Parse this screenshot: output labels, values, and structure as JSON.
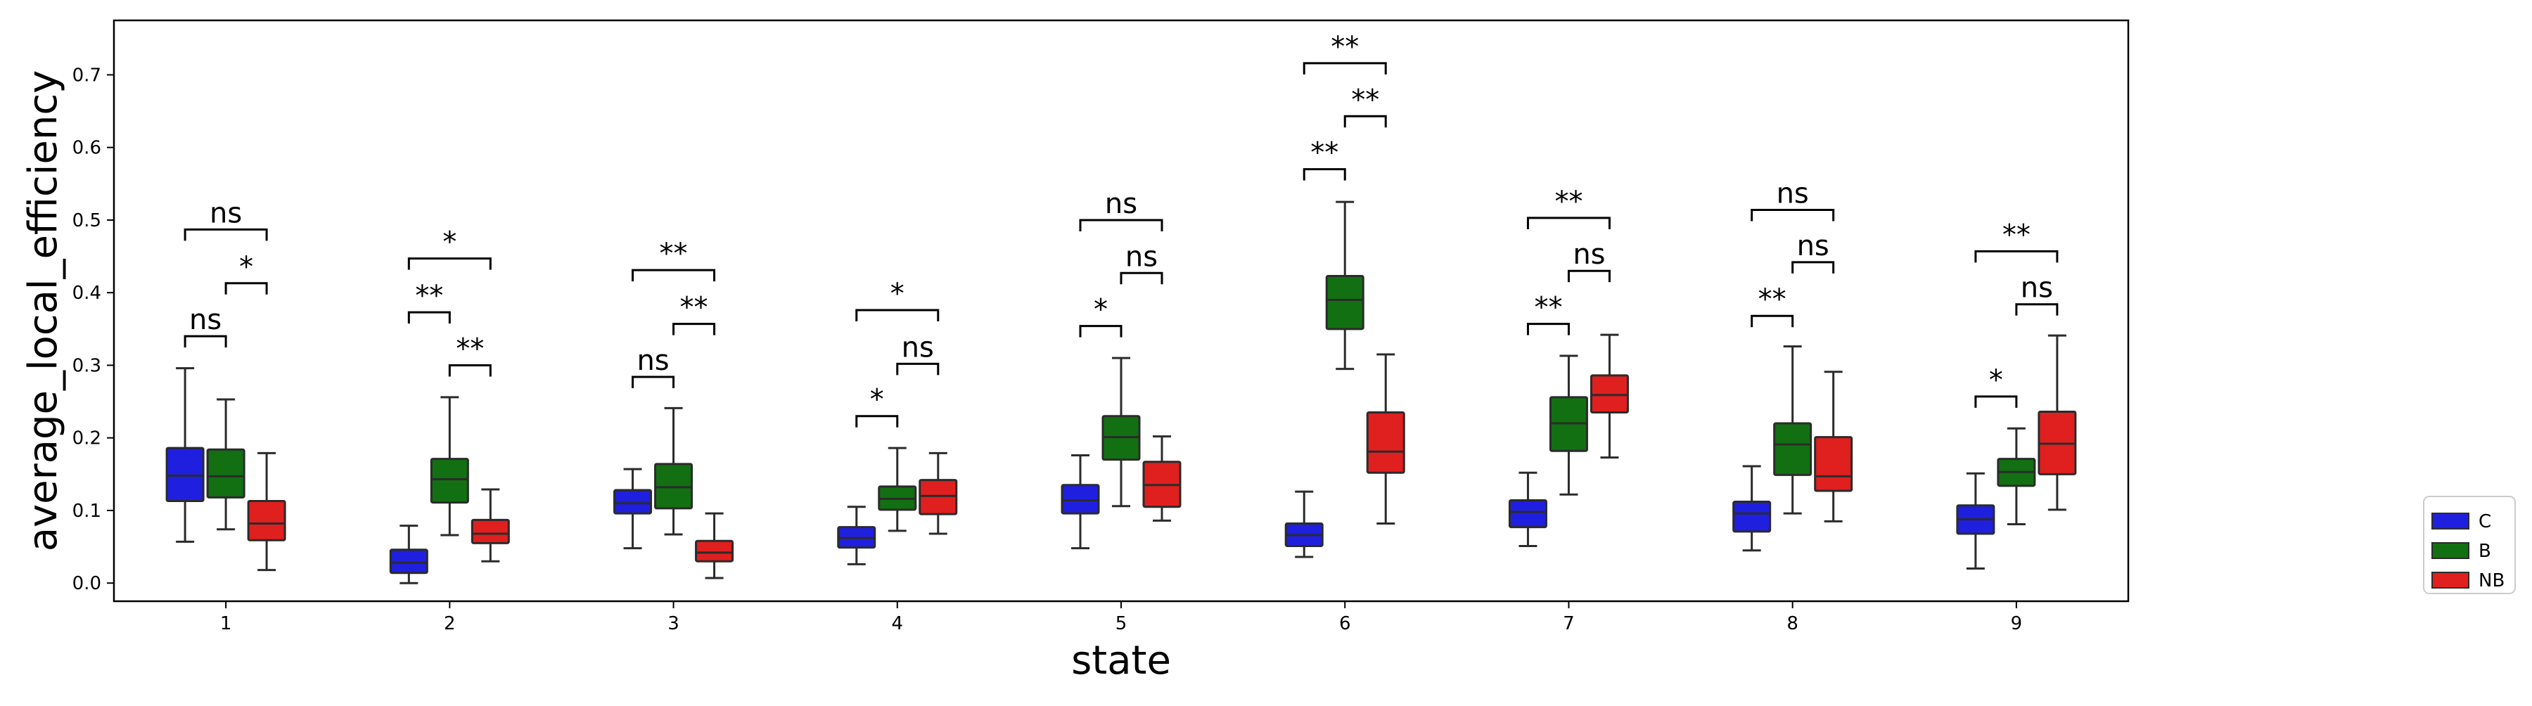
{
  "chart_data": {
    "type": "boxplot",
    "title": "",
    "xlabel": "state",
    "ylabel": "average_local_efficiency",
    "ylim": [
      -0.025,
      0.775
    ],
    "yticks": [
      0.0,
      0.1,
      0.2,
      0.3,
      0.4,
      0.5,
      0.6,
      0.7
    ],
    "ytick_labels": [
      "0.0",
      "0.1",
      "0.2",
      "0.3",
      "0.4",
      "0.5",
      "0.6",
      "0.7"
    ],
    "categories": [
      "1",
      "2",
      "3",
      "4",
      "5",
      "6",
      "7",
      "8",
      "9"
    ],
    "grid": false,
    "legend_position": "bottom-right outside",
    "series": [
      {
        "name": "C",
        "color": "#1f1fe0",
        "boxes": [
          {
            "min": 0.057,
            "q1": 0.113,
            "median": 0.148,
            "q3": 0.186,
            "max": 0.296
          },
          {
            "min": 0.0,
            "q1": 0.014,
            "median": 0.028,
            "q3": 0.046,
            "max": 0.079
          },
          {
            "min": 0.048,
            "q1": 0.096,
            "median": 0.11,
            "q3": 0.128,
            "max": 0.157
          },
          {
            "min": 0.026,
            "q1": 0.049,
            "median": 0.062,
            "q3": 0.077,
            "max": 0.105
          },
          {
            "min": 0.048,
            "q1": 0.096,
            "median": 0.114,
            "q3": 0.135,
            "max": 0.176
          },
          {
            "min": 0.036,
            "q1": 0.051,
            "median": 0.066,
            "q3": 0.082,
            "max": 0.126
          },
          {
            "min": 0.051,
            "q1": 0.077,
            "median": 0.098,
            "q3": 0.114,
            "max": 0.152
          },
          {
            "min": 0.045,
            "q1": 0.071,
            "median": 0.096,
            "q3": 0.112,
            "max": 0.161
          },
          {
            "min": 0.02,
            "q1": 0.068,
            "median": 0.088,
            "q3": 0.107,
            "max": 0.151
          }
        ]
      },
      {
        "name": "B",
        "color": "#127012",
        "boxes": [
          {
            "min": 0.074,
            "q1": 0.118,
            "median": 0.147,
            "q3": 0.184,
            "max": 0.253
          },
          {
            "min": 0.066,
            "q1": 0.111,
            "median": 0.143,
            "q3": 0.171,
            "max": 0.256
          },
          {
            "min": 0.067,
            "q1": 0.103,
            "median": 0.132,
            "q3": 0.164,
            "max": 0.241
          },
          {
            "min": 0.072,
            "q1": 0.101,
            "median": 0.116,
            "q3": 0.133,
            "max": 0.186
          },
          {
            "min": 0.106,
            "q1": 0.17,
            "median": 0.201,
            "q3": 0.23,
            "max": 0.31
          },
          {
            "min": 0.295,
            "q1": 0.35,
            "median": 0.39,
            "q3": 0.423,
            "max": 0.525
          },
          {
            "min": 0.122,
            "q1": 0.182,
            "median": 0.22,
            "q3": 0.256,
            "max": 0.313
          },
          {
            "min": 0.096,
            "q1": 0.149,
            "median": 0.191,
            "q3": 0.22,
            "max": 0.326
          },
          {
            "min": 0.081,
            "q1": 0.134,
            "median": 0.153,
            "q3": 0.171,
            "max": 0.213
          }
        ]
      },
      {
        "name": "NB",
        "color": "#e01f1f",
        "boxes": [
          {
            "min": 0.018,
            "q1": 0.059,
            "median": 0.082,
            "q3": 0.113,
            "max": 0.179
          },
          {
            "min": 0.03,
            "q1": 0.055,
            "median": 0.068,
            "q3": 0.087,
            "max": 0.129
          },
          {
            "min": 0.007,
            "q1": 0.03,
            "median": 0.042,
            "q3": 0.058,
            "max": 0.096
          },
          {
            "min": 0.068,
            "q1": 0.095,
            "median": 0.12,
            "q3": 0.142,
            "max": 0.179
          },
          {
            "min": 0.086,
            "q1": 0.105,
            "median": 0.135,
            "q3": 0.167,
            "max": 0.202
          },
          {
            "min": 0.082,
            "q1": 0.152,
            "median": 0.181,
            "q3": 0.235,
            "max": 0.315
          },
          {
            "min": 0.173,
            "q1": 0.235,
            "median": 0.259,
            "q3": 0.286,
            "max": 0.342
          },
          {
            "min": 0.085,
            "q1": 0.127,
            "median": 0.147,
            "q3": 0.201,
            "max": 0.291
          },
          {
            "min": 0.101,
            "q1": 0.15,
            "median": 0.192,
            "q3": 0.236,
            "max": 0.341
          }
        ]
      }
    ],
    "annotations": [
      {
        "category": "1",
        "from": "C",
        "to": "B",
        "y": 0.34,
        "label": "ns"
      },
      {
        "category": "1",
        "from": "B",
        "to": "NB",
        "y": 0.413,
        "label": "*"
      },
      {
        "category": "1",
        "from": "C",
        "to": "NB",
        "y": 0.487,
        "label": "ns"
      },
      {
        "category": "2",
        "from": "C",
        "to": "B",
        "y": 0.373,
        "label": "**"
      },
      {
        "category": "2",
        "from": "B",
        "to": "NB",
        "y": 0.3,
        "label": "**"
      },
      {
        "category": "2",
        "from": "C",
        "to": "NB",
        "y": 0.447,
        "label": "*"
      },
      {
        "category": "3",
        "from": "C",
        "to": "B",
        "y": 0.284,
        "label": "ns"
      },
      {
        "category": "3",
        "from": "B",
        "to": "NB",
        "y": 0.357,
        "label": "**"
      },
      {
        "category": "3",
        "from": "C",
        "to": "NB",
        "y": 0.431,
        "label": "**"
      },
      {
        "category": "4",
        "from": "C",
        "to": "B",
        "y": 0.23,
        "label": "*"
      },
      {
        "category": "4",
        "from": "B",
        "to": "NB",
        "y": 0.302,
        "label": "ns"
      },
      {
        "category": "4",
        "from": "C",
        "to": "NB",
        "y": 0.376,
        "label": "*"
      },
      {
        "category": "5",
        "from": "C",
        "to": "B",
        "y": 0.354,
        "label": "*"
      },
      {
        "category": "5",
        "from": "B",
        "to": "NB",
        "y": 0.427,
        "label": "ns"
      },
      {
        "category": "5",
        "from": "C",
        "to": "NB",
        "y": 0.5,
        "label": "ns"
      },
      {
        "category": "6",
        "from": "C",
        "to": "B",
        "y": 0.57,
        "label": "**"
      },
      {
        "category": "6",
        "from": "B",
        "to": "NB",
        "y": 0.643,
        "label": "**"
      },
      {
        "category": "6",
        "from": "C",
        "to": "NB",
        "y": 0.716,
        "label": "**"
      },
      {
        "category": "7",
        "from": "C",
        "to": "B",
        "y": 0.357,
        "label": "**"
      },
      {
        "category": "7",
        "from": "B",
        "to": "NB",
        "y": 0.43,
        "label": "ns"
      },
      {
        "category": "7",
        "from": "C",
        "to": "NB",
        "y": 0.503,
        "label": "**"
      },
      {
        "category": "8",
        "from": "C",
        "to": "B",
        "y": 0.368,
        "label": "**"
      },
      {
        "category": "8",
        "from": "B",
        "to": "NB",
        "y": 0.442,
        "label": "ns"
      },
      {
        "category": "8",
        "from": "C",
        "to": "NB",
        "y": 0.514,
        "label": "ns"
      },
      {
        "category": "9",
        "from": "C",
        "to": "B",
        "y": 0.257,
        "label": "*"
      },
      {
        "category": "9",
        "from": "B",
        "to": "NB",
        "y": 0.384,
        "label": "ns"
      },
      {
        "category": "9",
        "from": "C",
        "to": "NB",
        "y": 0.457,
        "label": "**"
      }
    ]
  }
}
